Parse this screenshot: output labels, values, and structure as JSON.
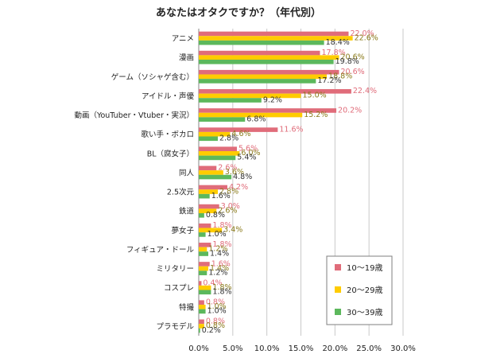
{
  "chart_data": {
    "type": "bar",
    "orientation": "horizontal",
    "title": "あなたはオタクですか？（年代別）",
    "categories": [
      "アニメ",
      "漫画",
      "ゲーム（ソシャゲ含む）",
      "アイドル・声優",
      "動画（YouTuber・Vtuber・実況）",
      "歌い手・ボカロ",
      "BL（腐女子）",
      "同人",
      "2.5次元",
      "鉄道",
      "夢女子",
      "フィギュア・ドール",
      "ミリタリー",
      "コスプレ",
      "特撮",
      "プラモデル"
    ],
    "series": [
      {
        "name": "10～19歳",
        "color": "#E06C7A",
        "values": [
          22.0,
          17.8,
          20.6,
          22.4,
          20.2,
          11.6,
          5.6,
          2.6,
          4.2,
          3.0,
          1.8,
          1.8,
          1.6,
          0.4,
          0.8,
          0.8
        ],
        "labels": [
          "22.0%",
          "17.8%",
          "20.6%",
          "22.4%",
          "20.2%",
          "11.6%",
          "5.6%",
          "2.6%",
          "4.2%",
          "3.0%",
          "1.8%",
          "1.8%",
          "1.6%",
          "0.4%",
          "0.8%",
          "0.8%"
        ]
      },
      {
        "name": "20～29歳",
        "color": "#FFCC00",
        "values": [
          22.6,
          20.6,
          18.8,
          15.0,
          15.2,
          4.6,
          6.0,
          3.6,
          2.8,
          2.6,
          3.4,
          1.2,
          1.4,
          1.8,
          1.0,
          0.8
        ],
        "labels": [
          "22.6%",
          "20.6%",
          "18.8%",
          "15.0%",
          "15.2%",
          "4.6%",
          "6.0%",
          "3.6%",
          "2.8%",
          "2.6%",
          "3.4%",
          "1.2%",
          "1.4%",
          "1.8%",
          "1.0%",
          "0.8%"
        ]
      },
      {
        "name": "30～39歳",
        "color": "#5CB85C",
        "values": [
          18.4,
          19.8,
          17.2,
          9.2,
          6.8,
          2.8,
          5.4,
          4.8,
          1.6,
          0.8,
          1.0,
          1.4,
          1.2,
          1.8,
          1.0,
          0.2
        ],
        "labels": [
          "18.4%",
          "19.8%",
          "17.2%",
          "9.2%",
          "6.8%",
          "2.8%",
          "5.4%",
          "4.8%",
          "1.6%",
          "0.8%",
          "1.0%",
          "1.4%",
          "1.2%",
          "1.8%",
          "1.0%",
          "0.2%"
        ]
      }
    ],
    "x_ticks": [
      "0.0%",
      "5.0%",
      "10.0%",
      "15.0%",
      "20.0%",
      "25.0%",
      "30.0%"
    ],
    "xlim": [
      0,
      30
    ],
    "grid": true,
    "legend_position": "bottom-right"
  }
}
